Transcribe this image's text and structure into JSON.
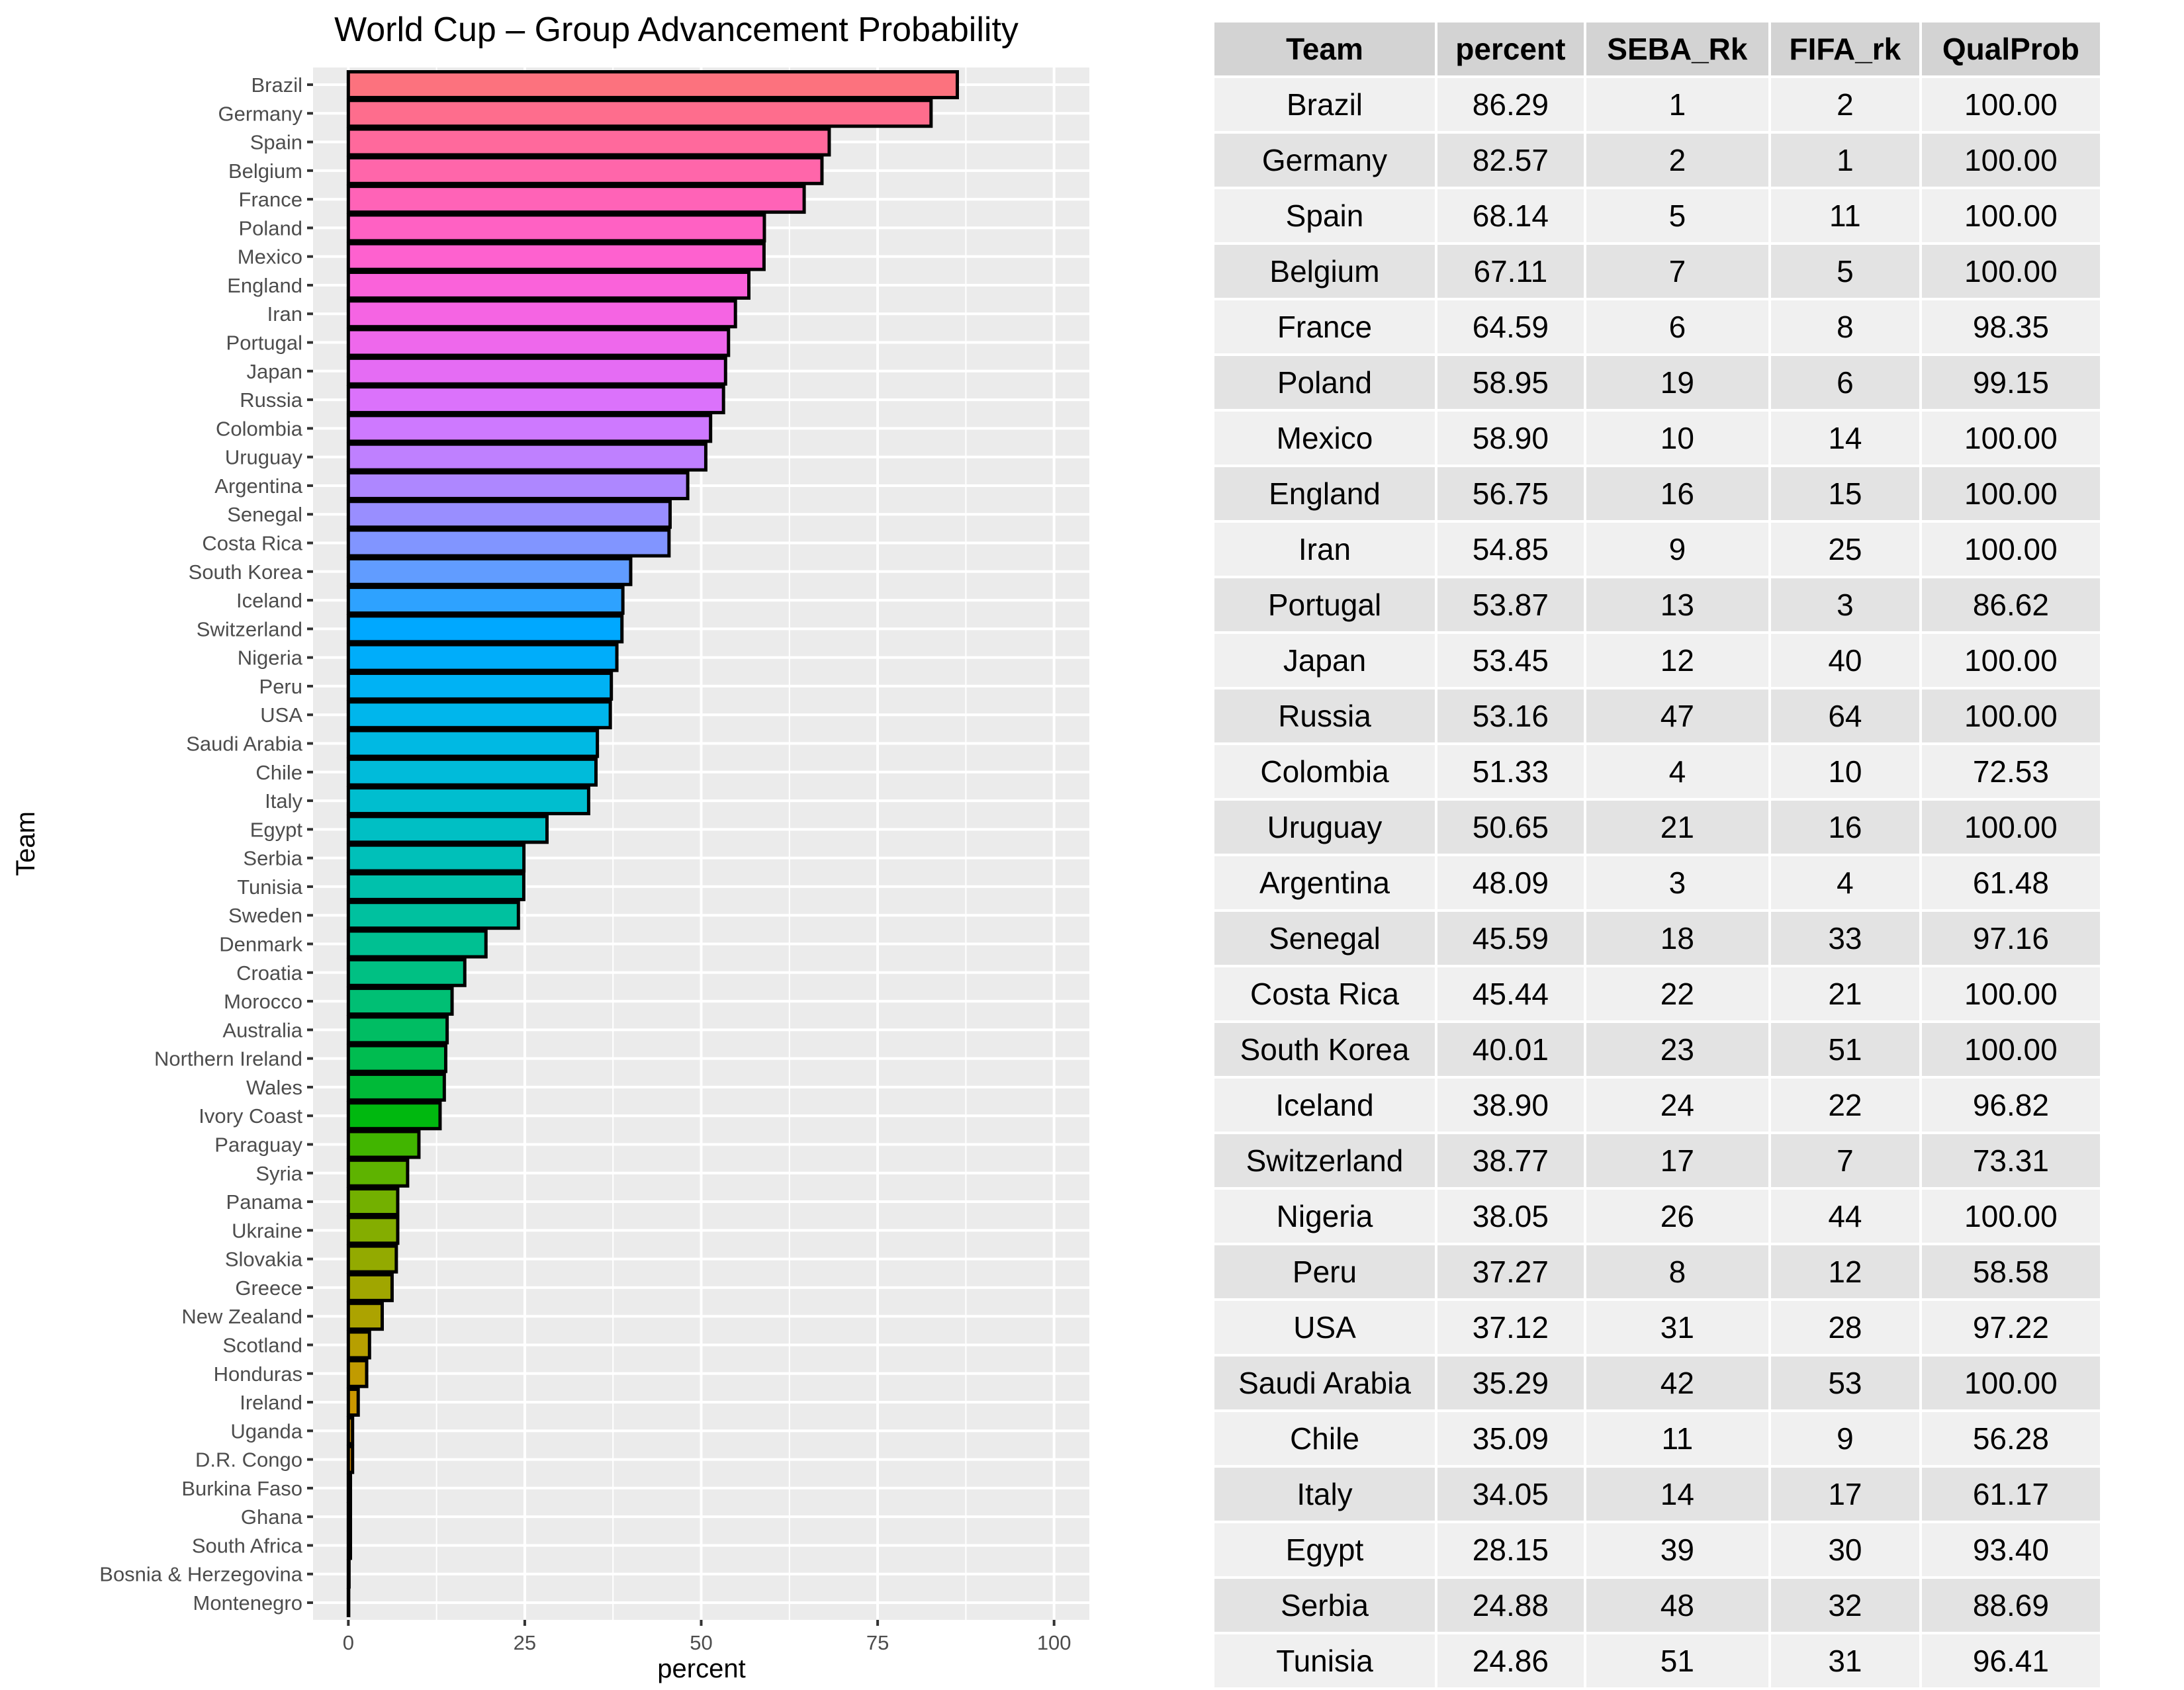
{
  "chart_data": {
    "type": "bar",
    "orientation": "horizontal",
    "title": "World Cup – Group Advancement Probability",
    "xlabel": "percent",
    "ylabel": "Team",
    "xlim": [
      0,
      100
    ],
    "xticks": [
      0,
      25,
      50,
      75,
      100
    ],
    "grid": true,
    "legend": "none",
    "categories": [
      "Brazil",
      "Germany",
      "Spain",
      "Belgium",
      "France",
      "Poland",
      "Mexico",
      "England",
      "Iran",
      "Portugal",
      "Japan",
      "Russia",
      "Colombia",
      "Uruguay",
      "Argentina",
      "Senegal",
      "Costa Rica",
      "South Korea",
      "Iceland",
      "Switzerland",
      "Nigeria",
      "Peru",
      "USA",
      "Saudi Arabia",
      "Chile",
      "Italy",
      "Egypt",
      "Serbia",
      "Tunisia",
      "Sweden",
      "Denmark",
      "Croatia",
      "Morocco",
      "Australia",
      "Northern Ireland",
      "Wales",
      "Ivory Coast",
      "Paraguay",
      "Syria",
      "Panama",
      "Ukraine",
      "Slovakia",
      "Greece",
      "New Zealand",
      "Scotland",
      "Honduras",
      "Ireland",
      "Uganda",
      "D.R. Congo",
      "Burkina Faso",
      "Ghana",
      "South Africa",
      "Bosnia & Herzegovina",
      "Montenegro"
    ],
    "values": [
      86.29,
      82.57,
      68.14,
      67.11,
      64.59,
      58.95,
      58.9,
      56.75,
      54.85,
      53.87,
      53.45,
      53.16,
      51.33,
      50.65,
      48.09,
      45.59,
      45.44,
      40.01,
      38.9,
      38.77,
      38.05,
      37.27,
      37.12,
      35.29,
      35.09,
      34.05,
      28.15,
      24.88,
      24.86,
      24.1,
      19.5,
      16.5,
      14.7,
      14.0,
      13.8,
      13.6,
      13.0,
      10.0,
      8.4,
      7.0,
      7.0,
      6.8,
      6.2,
      4.8,
      3.0,
      2.6,
      1.4,
      0.6,
      0.6,
      0.3,
      0.3,
      0.3,
      0.1,
      0.05
    ]
  },
  "table": {
    "headers": [
      "Team",
      "percent",
      "SEBA_Rk",
      "FIFA_rk",
      "QualProb"
    ],
    "rows": [
      [
        "Brazil",
        "86.29",
        "1",
        "2",
        "100.00"
      ],
      [
        "Germany",
        "82.57",
        "2",
        "1",
        "100.00"
      ],
      [
        "Spain",
        "68.14",
        "5",
        "11",
        "100.00"
      ],
      [
        "Belgium",
        "67.11",
        "7",
        "5",
        "100.00"
      ],
      [
        "France",
        "64.59",
        "6",
        "8",
        "98.35"
      ],
      [
        "Poland",
        "58.95",
        "19",
        "6",
        "99.15"
      ],
      [
        "Mexico",
        "58.90",
        "10",
        "14",
        "100.00"
      ],
      [
        "England",
        "56.75",
        "16",
        "15",
        "100.00"
      ],
      [
        "Iran",
        "54.85",
        "9",
        "25",
        "100.00"
      ],
      [
        "Portugal",
        "53.87",
        "13",
        "3",
        "86.62"
      ],
      [
        "Japan",
        "53.45",
        "12",
        "40",
        "100.00"
      ],
      [
        "Russia",
        "53.16",
        "47",
        "64",
        "100.00"
      ],
      [
        "Colombia",
        "51.33",
        "4",
        "10",
        "72.53"
      ],
      [
        "Uruguay",
        "50.65",
        "21",
        "16",
        "100.00"
      ],
      [
        "Argentina",
        "48.09",
        "3",
        "4",
        "61.48"
      ],
      [
        "Senegal",
        "45.59",
        "18",
        "33",
        "97.16"
      ],
      [
        "Costa Rica",
        "45.44",
        "22",
        "21",
        "100.00"
      ],
      [
        "South Korea",
        "40.01",
        "23",
        "51",
        "100.00"
      ],
      [
        "Iceland",
        "38.90",
        "24",
        "22",
        "96.82"
      ],
      [
        "Switzerland",
        "38.77",
        "17",
        "7",
        "73.31"
      ],
      [
        "Nigeria",
        "38.05",
        "26",
        "44",
        "100.00"
      ],
      [
        "Peru",
        "37.27",
        "8",
        "12",
        "58.58"
      ],
      [
        "USA",
        "37.12",
        "31",
        "28",
        "97.22"
      ],
      [
        "Saudi Arabia",
        "35.29",
        "42",
        "53",
        "100.00"
      ],
      [
        "Chile",
        "35.09",
        "11",
        "9",
        "56.28"
      ],
      [
        "Italy",
        "34.05",
        "14",
        "17",
        "61.17"
      ],
      [
        "Egypt",
        "28.15",
        "39",
        "30",
        "93.40"
      ],
      [
        "Serbia",
        "24.88",
        "48",
        "32",
        "88.69"
      ],
      [
        "Tunisia",
        "24.86",
        "51",
        "31",
        "96.41"
      ]
    ]
  }
}
